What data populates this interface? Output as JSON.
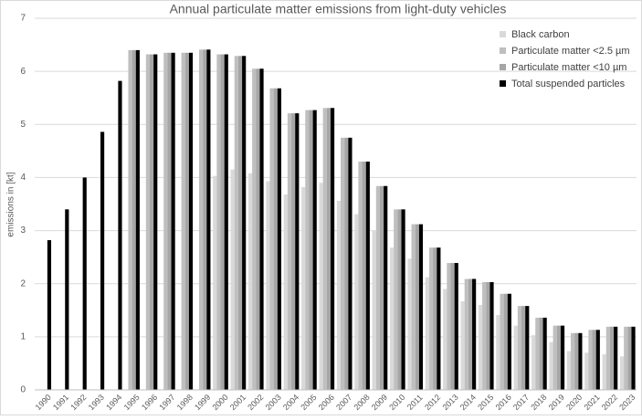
{
  "chart_data": {
    "type": "bar",
    "title": "Annual particulate matter emissions from light-duty vehicles",
    "y_label": "emissions in [kt]",
    "categories": [
      "1990",
      "1991",
      "1992",
      "1993",
      "1994",
      "1995",
      "1996",
      "1997",
      "1998",
      "1999",
      "2000",
      "2001",
      "2002",
      "2003",
      "2004",
      "2005",
      "2006",
      "2007",
      "2008",
      "2009",
      "2010",
      "2011",
      "2012",
      "2013",
      "2014",
      "2015",
      "2016",
      "2017",
      "2018",
      "2019",
      "2020",
      "2021",
      "2022",
      "2023"
    ],
    "series": [
      {
        "name": "Black carbon",
        "color": "#d9d9d9",
        "values": [
          null,
          null,
          null,
          null,
          null,
          null,
          null,
          null,
          null,
          null,
          4.03,
          4.15,
          4.08,
          3.93,
          3.68,
          3.82,
          3.9,
          3.56,
          3.31,
          3.0,
          2.68,
          2.47,
          2.12,
          1.9,
          1.67,
          1.6,
          1.41,
          1.21,
          1.03,
          0.9,
          0.73,
          0.7,
          0.67,
          0.63
        ]
      },
      {
        "name": "Particulate matter <2.5 µm",
        "color": "#bfbfbf",
        "values": [
          null,
          null,
          null,
          null,
          null,
          6.4,
          6.32,
          6.35,
          6.35,
          6.41,
          6.32,
          6.29,
          6.05,
          5.68,
          5.21,
          5.27,
          5.31,
          4.75,
          4.3,
          3.84,
          3.4,
          3.12,
          2.68,
          2.39,
          2.09,
          2.03,
          1.81,
          1.58,
          1.36,
          1.21,
          1.07,
          1.13,
          1.19,
          1.19
        ]
      },
      {
        "name": "Particulate matter <10 µm",
        "color": "#a6a6a6",
        "values": [
          null,
          null,
          null,
          null,
          null,
          6.4,
          6.32,
          6.35,
          6.35,
          6.41,
          6.32,
          6.29,
          6.05,
          5.68,
          5.21,
          5.27,
          5.31,
          4.75,
          4.3,
          3.84,
          3.4,
          3.12,
          2.68,
          2.39,
          2.09,
          2.03,
          1.81,
          1.58,
          1.36,
          1.21,
          1.07,
          1.13,
          1.19,
          1.19
        ]
      },
      {
        "name": "Total suspended particles",
        "color": "#000000",
        "values": [
          2.82,
          3.4,
          4.0,
          4.86,
          5.82,
          6.4,
          6.32,
          6.35,
          6.35,
          6.41,
          6.32,
          6.29,
          6.05,
          5.68,
          5.21,
          5.27,
          5.31,
          4.75,
          4.3,
          3.84,
          3.4,
          3.12,
          2.68,
          2.39,
          2.09,
          2.03,
          1.81,
          1.58,
          1.36,
          1.21,
          1.07,
          1.13,
          1.19,
          1.19
        ]
      }
    ],
    "ylim": [
      0,
      7
    ],
    "yticks": [
      0,
      1,
      2,
      3,
      4,
      5,
      6,
      7
    ],
    "grid": true,
    "legend": "top-right"
  }
}
